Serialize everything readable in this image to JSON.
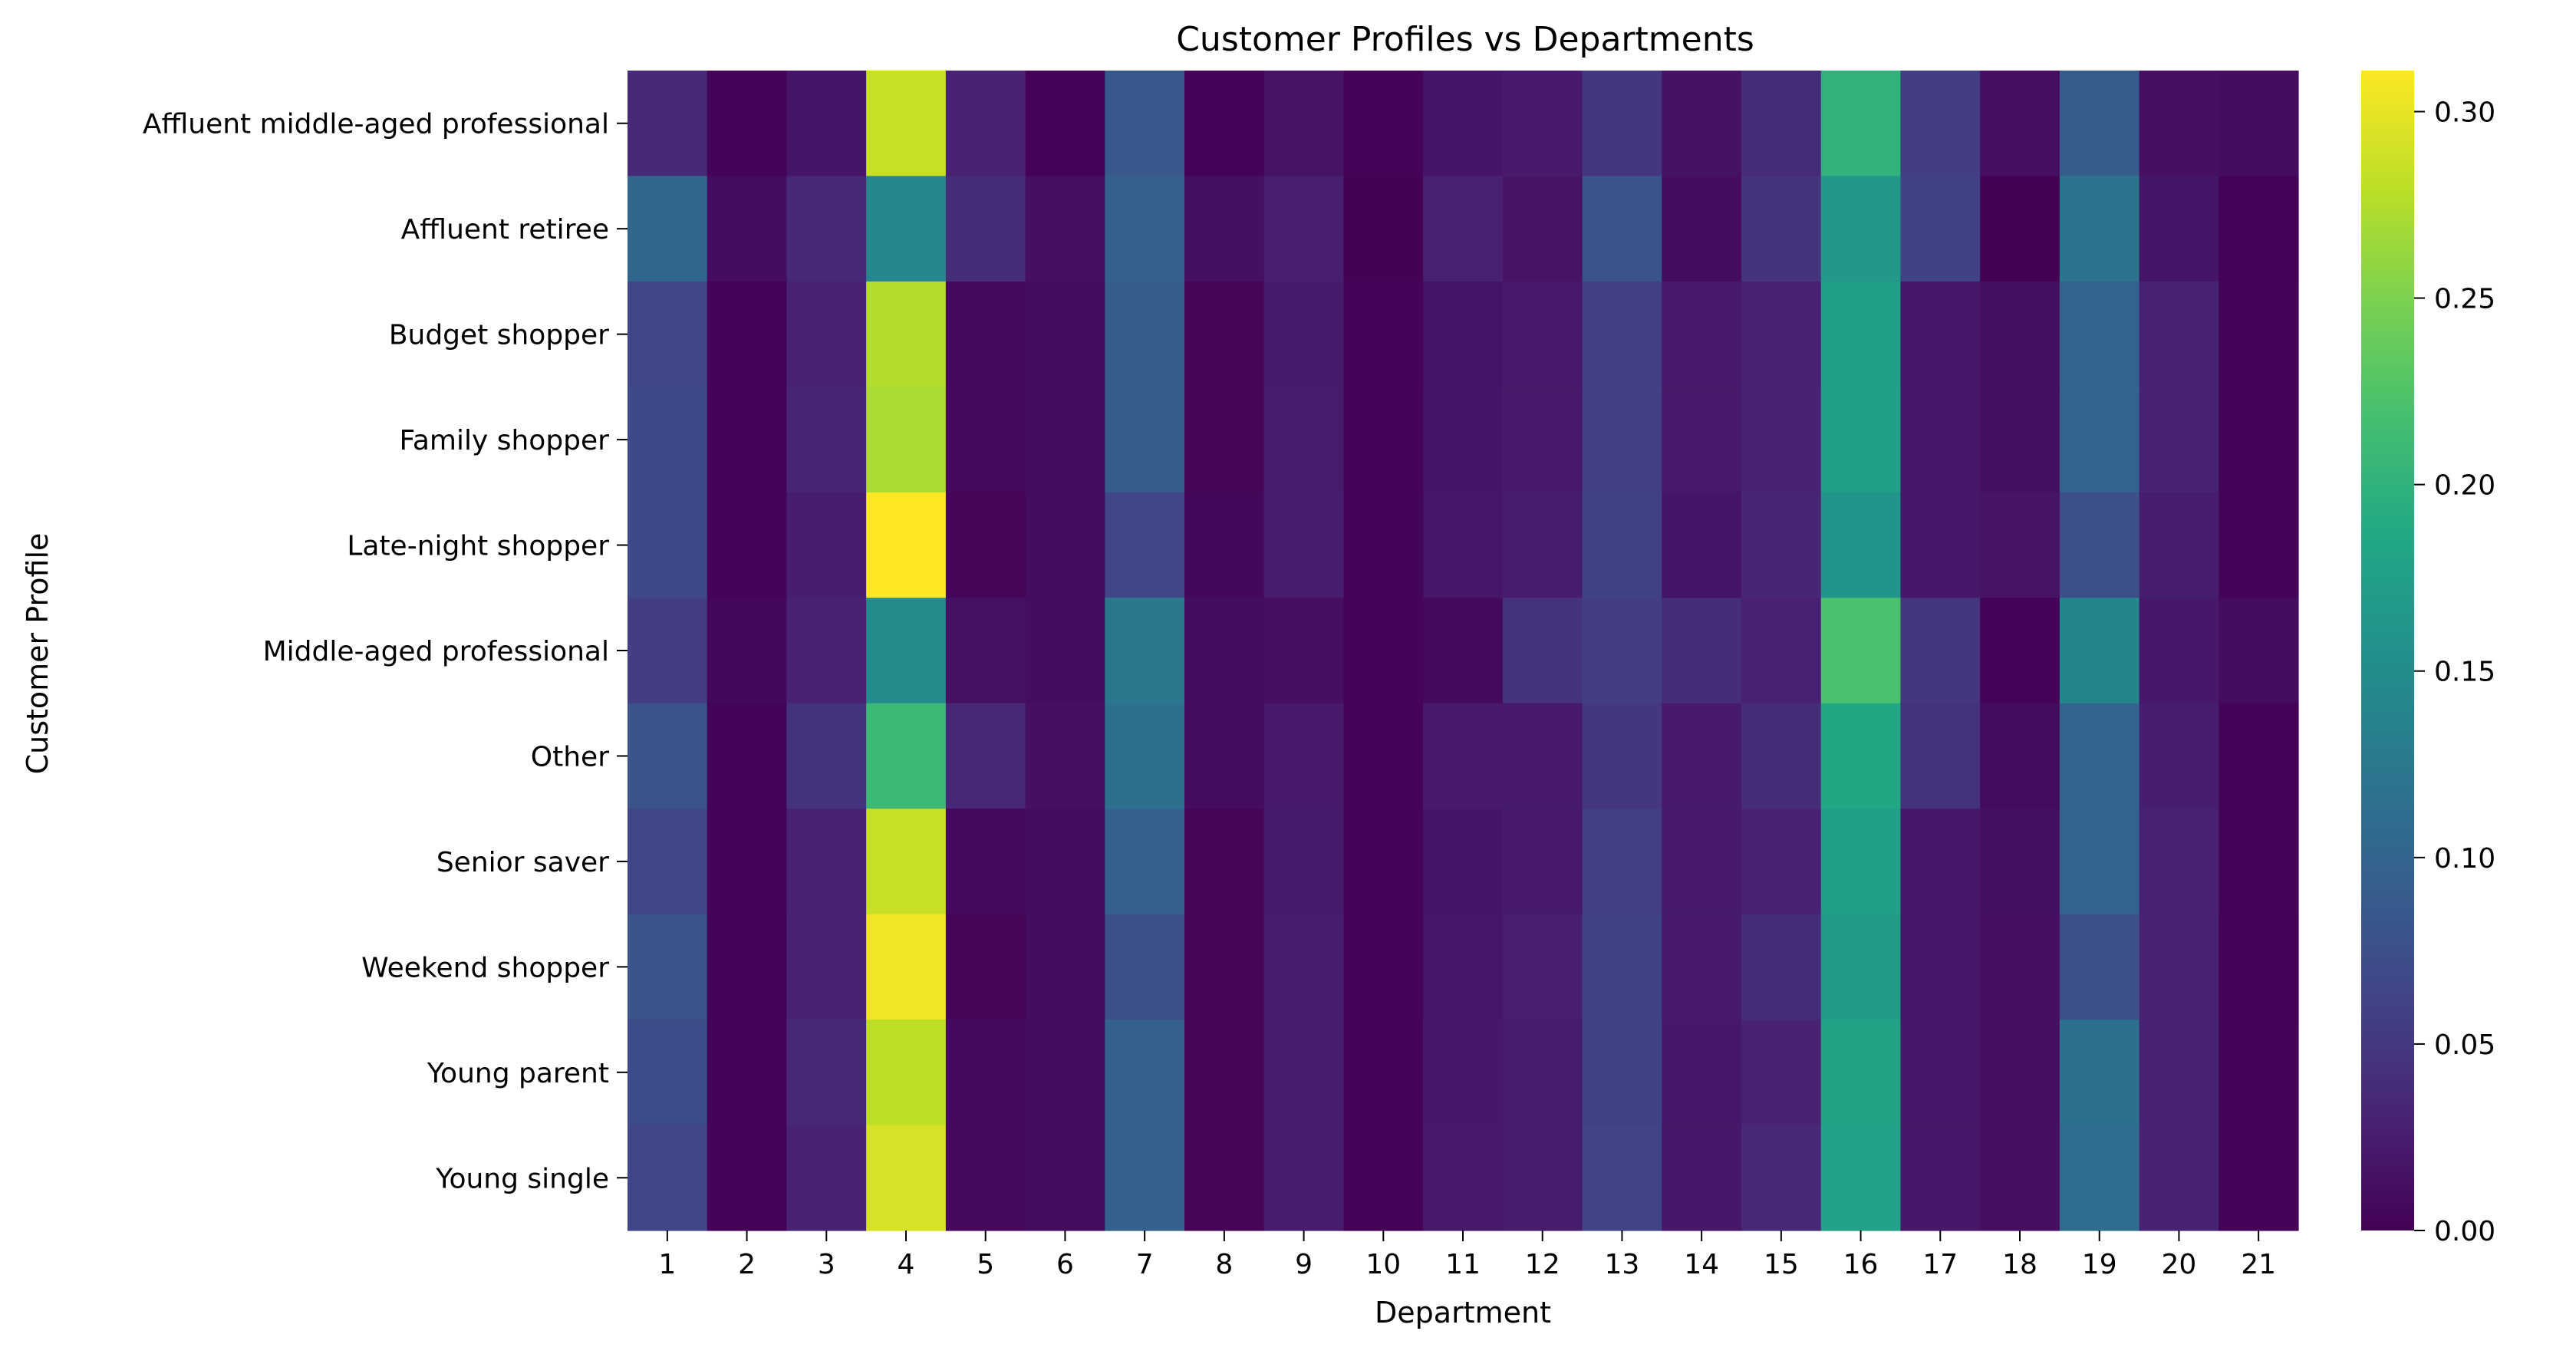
{
  "chart_data": {
    "type": "heatmap",
    "title": "Customer Profiles vs Departments",
    "xlabel": "Department",
    "ylabel": "Customer Profile",
    "colormap": "viridis",
    "vmin": 0.0,
    "vmax": 0.311,
    "colorbar_ticks": [
      "0.00",
      "0.05",
      "0.10",
      "0.15",
      "0.20",
      "0.25",
      "0.30"
    ],
    "columns": [
      "1",
      "2",
      "3",
      "4",
      "5",
      "6",
      "7",
      "8",
      "9",
      "10",
      "11",
      "12",
      "13",
      "14",
      "15",
      "16",
      "17",
      "18",
      "19",
      "20",
      "21"
    ],
    "rows": [
      "Affluent middle-aged professional",
      "Affluent retiree",
      "Budget shopper",
      "Family shopper",
      "Late-night shopper",
      "Middle-aged professional",
      "Other",
      "Senior saver",
      "Weekend shopper",
      "Young parent",
      "Young single"
    ],
    "values": [
      [
        0.036,
        0.003,
        0.018,
        0.285,
        0.03,
        0.002,
        0.085,
        0.002,
        0.016,
        0.002,
        0.018,
        0.022,
        0.05,
        0.015,
        0.038,
        0.2,
        0.055,
        0.012,
        0.09,
        0.012,
        0.01
      ],
      [
        0.103,
        0.01,
        0.036,
        0.143,
        0.04,
        0.012,
        0.095,
        0.013,
        0.026,
        0.001,
        0.028,
        0.016,
        0.08,
        0.01,
        0.047,
        0.165,
        0.06,
        0.001,
        0.12,
        0.018,
        0.002
      ],
      [
        0.065,
        0.002,
        0.03,
        0.275,
        0.006,
        0.009,
        0.09,
        0.004,
        0.023,
        0.002,
        0.017,
        0.022,
        0.058,
        0.022,
        0.028,
        0.175,
        0.019,
        0.013,
        0.1,
        0.03,
        0.003
      ],
      [
        0.068,
        0.002,
        0.031,
        0.272,
        0.006,
        0.009,
        0.09,
        0.004,
        0.024,
        0.002,
        0.018,
        0.022,
        0.058,
        0.022,
        0.03,
        0.175,
        0.02,
        0.013,
        0.1,
        0.03,
        0.003
      ],
      [
        0.068,
        0.002,
        0.025,
        0.311,
        0.004,
        0.01,
        0.065,
        0.005,
        0.025,
        0.003,
        0.019,
        0.024,
        0.06,
        0.018,
        0.033,
        0.16,
        0.02,
        0.016,
        0.075,
        0.025,
        0.003
      ],
      [
        0.055,
        0.005,
        0.03,
        0.148,
        0.014,
        0.01,
        0.125,
        0.011,
        0.012,
        0.003,
        0.008,
        0.046,
        0.055,
        0.04,
        0.028,
        0.22,
        0.05,
        0.002,
        0.14,
        0.02,
        0.01
      ],
      [
        0.08,
        0.003,
        0.045,
        0.21,
        0.035,
        0.012,
        0.115,
        0.009,
        0.022,
        0.002,
        0.021,
        0.022,
        0.05,
        0.022,
        0.04,
        0.185,
        0.045,
        0.009,
        0.1,
        0.025,
        0.002
      ],
      [
        0.065,
        0.002,
        0.028,
        0.285,
        0.006,
        0.009,
        0.095,
        0.004,
        0.023,
        0.002,
        0.018,
        0.022,
        0.057,
        0.022,
        0.028,
        0.175,
        0.02,
        0.013,
        0.1,
        0.028,
        0.003
      ],
      [
        0.078,
        0.002,
        0.03,
        0.305,
        0.004,
        0.01,
        0.075,
        0.004,
        0.025,
        0.002,
        0.019,
        0.026,
        0.06,
        0.022,
        0.04,
        0.17,
        0.019,
        0.012,
        0.075,
        0.03,
        0.002
      ],
      [
        0.07,
        0.003,
        0.034,
        0.28,
        0.008,
        0.009,
        0.095,
        0.004,
        0.025,
        0.002,
        0.02,
        0.024,
        0.06,
        0.02,
        0.03,
        0.18,
        0.02,
        0.012,
        0.115,
        0.03,
        0.003
      ],
      [
        0.065,
        0.002,
        0.03,
        0.292,
        0.006,
        0.01,
        0.095,
        0.004,
        0.025,
        0.002,
        0.021,
        0.024,
        0.062,
        0.02,
        0.035,
        0.178,
        0.02,
        0.012,
        0.11,
        0.03,
        0.003
      ]
    ]
  }
}
